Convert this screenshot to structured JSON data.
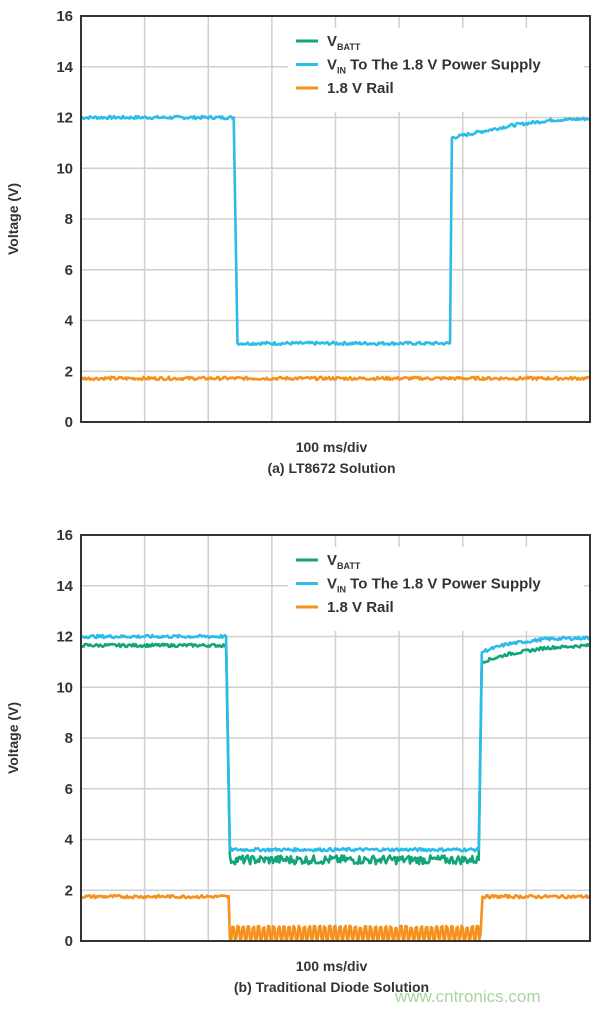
{
  "colors": {
    "vbatt": "#12a579",
    "vin": "#2bbcea",
    "rail": "#f5921e",
    "grid": "#cfcfcf",
    "frame": "#333333"
  },
  "watermark": "www.cntronics.com",
  "chart_data": [
    {
      "type": "line",
      "title": "(a) LT8672 Solution",
      "xlabel": "100 ms/div",
      "ylabel": "Voltage (V)",
      "x_unit": "ms",
      "xlim": [
        0,
        800
      ],
      "ylim": [
        0,
        16
      ],
      "yticks": [
        "0",
        "2",
        "4",
        "6",
        "8",
        "10",
        "12",
        "14",
        "16"
      ],
      "grid": true,
      "legend_position": "top-right",
      "legend": [
        {
          "main": "V",
          "sub": "BATT",
          "rest": "",
          "series": "vbatt"
        },
        {
          "main": "V",
          "sub": "IN",
          "rest": " To The 1.8 V Power Supply",
          "series": "vin"
        },
        {
          "main": "1.8 V Rail",
          "sub": "",
          "rest": "",
          "series": "rail"
        }
      ],
      "series": [
        {
          "key": "vin",
          "points": [
            [
              0,
              12
            ],
            [
              240,
              12
            ],
            [
              246,
              3.1
            ],
            [
              580,
              3.1
            ],
            [
              583,
              11.2
            ],
            [
              620,
              11.4
            ],
            [
              680,
              11.7
            ],
            [
              740,
              11.9
            ],
            [
              800,
              11.95
            ]
          ]
        },
        {
          "key": "rail",
          "points": [
            [
              0,
              1.72
            ],
            [
              800,
              1.72
            ]
          ]
        }
      ]
    },
    {
      "type": "line",
      "title": "(b) Traditional Diode Solution",
      "xlabel": "100 ms/div",
      "ylabel": "Voltage (V)",
      "x_unit": "ms",
      "xlim": [
        0,
        800
      ],
      "ylim": [
        0,
        16
      ],
      "yticks": [
        "0",
        "2",
        "4",
        "6",
        "8",
        "10",
        "12",
        "14",
        "16"
      ],
      "grid": true,
      "legend_position": "top-right",
      "legend": [
        {
          "main": "V",
          "sub": "BATT",
          "rest": "",
          "series": "vbatt"
        },
        {
          "main": "V",
          "sub": "IN",
          "rest": " To The 1.8 V Power Supply",
          "series": "vin"
        },
        {
          "main": "1.8 V Rail",
          "sub": "",
          "rest": "",
          "series": "rail"
        }
      ],
      "series": [
        {
          "key": "vin",
          "points": [
            [
              0,
              12
            ],
            [
              228,
              12
            ],
            [
              234,
              3.6
            ],
            [
              625,
              3.6
            ],
            [
              630,
              11.4
            ],
            [
              670,
              11.7
            ],
            [
              730,
              11.9
            ],
            [
              800,
              11.95
            ]
          ]
        },
        {
          "key": "vbatt",
          "points": [
            [
              0,
              11.65
            ],
            [
              228,
              11.65
            ],
            [
              234,
              3.2
            ],
            [
              625,
              3.2
            ],
            [
              630,
              11.0
            ],
            [
              670,
              11.3
            ],
            [
              730,
              11.55
            ],
            [
              800,
              11.65
            ]
          ]
        },
        {
          "key": "rail",
          "points": [
            [
              0,
              1.75
            ],
            [
              232,
              1.75
            ],
            [
              234,
              0.3
            ],
            [
              628,
              0.3
            ],
            [
              631,
              1.75
            ],
            [
              800,
              1.75
            ]
          ],
          "ripple_between": [
            0,
            0.6
          ]
        }
      ]
    }
  ]
}
